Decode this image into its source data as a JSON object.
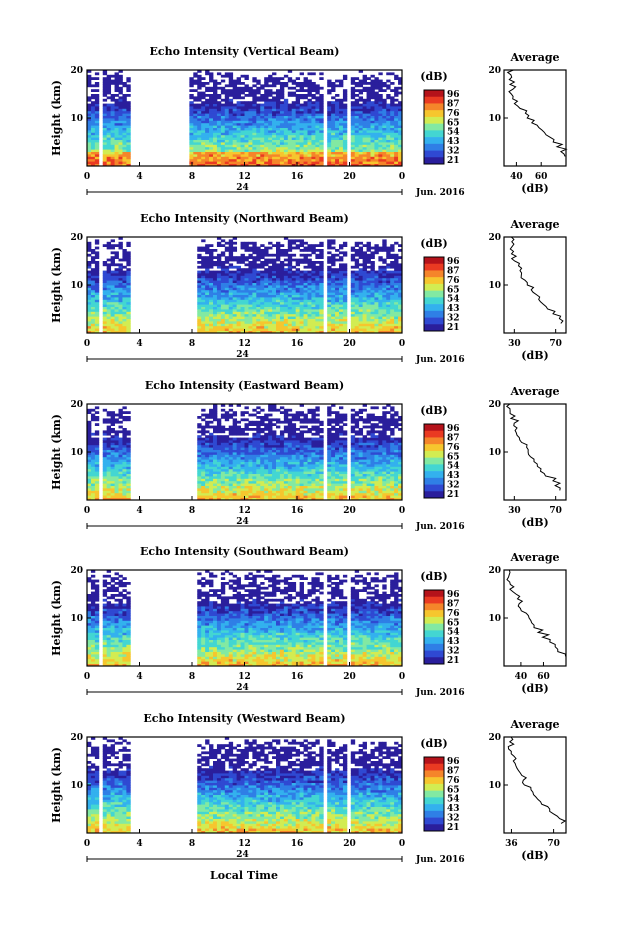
{
  "figure": {
    "ylabel": "Height (km)",
    "xlabel": "Local Time",
    "date_label": "Jun. 2016",
    "day_label": "24",
    "cbar_unit": "(dB)",
    "avg_title": "Average",
    "avg_xlabel": "(dB)",
    "colors": [
      "#2a1e9c",
      "#2f49d2",
      "#2f7fe6",
      "#33b1ee",
      "#43d6d2",
      "#82e9a2",
      "#d2ec52",
      "#f6c62e",
      "#f5852a",
      "#ea3a22",
      "#b5121a"
    ]
  },
  "chart_data": [
    {
      "type": "heatmap",
      "title": "Echo Intensity (Vertical Beam)",
      "x_ticks": [
        "0",
        "4",
        "8",
        "12",
        "16",
        "20",
        "0"
      ],
      "y_ticks": [
        "20",
        "10"
      ],
      "ylim": [
        0,
        20
      ],
      "xlim": [
        0,
        24
      ],
      "cbar_ticks": [
        "96",
        "87",
        "76",
        "65",
        "54",
        "43",
        "32",
        "21"
      ],
      "clim": [
        21,
        96
      ],
      "gaps": [
        [
          3.2,
          7.9
        ]
      ],
      "avg": {
        "xlim": [
          30,
          80
        ],
        "x_ticks": [
          "40",
          "60"
        ],
        "x_tick_values": [
          40,
          60
        ],
        "profile": [
          [
            2,
            80
          ],
          [
            3,
            77
          ],
          [
            4,
            74
          ],
          [
            5,
            70
          ],
          [
            6,
            66
          ],
          [
            7,
            62
          ],
          [
            8,
            57
          ],
          [
            9,
            53
          ],
          [
            10,
            49
          ],
          [
            11,
            46
          ],
          [
            12,
            44
          ],
          [
            13,
            40
          ],
          [
            14,
            38
          ],
          [
            15,
            37
          ],
          [
            16,
            38
          ],
          [
            17,
            36
          ],
          [
            18,
            35
          ],
          [
            19,
            34
          ],
          [
            20,
            36
          ]
        ]
      }
    },
    {
      "type": "heatmap",
      "title": "Echo Intensity (Northward Beam)",
      "x_ticks": [
        "0",
        "4",
        "8",
        "12",
        "16",
        "20",
        "0"
      ],
      "y_ticks": [
        "20",
        "10"
      ],
      "ylim": [
        0,
        20
      ],
      "xlim": [
        0,
        24
      ],
      "cbar_ticks": [
        "96",
        "87",
        "76",
        "65",
        "54",
        "43",
        "32",
        "21"
      ],
      "clim": [
        21,
        96
      ],
      "gaps": [
        [
          3.2,
          8.3
        ]
      ],
      "avg": {
        "xlim": [
          20,
          80
        ],
        "x_ticks": [
          "30",
          "70"
        ],
        "x_tick_values": [
          30,
          70
        ],
        "profile": [
          [
            2,
            74
          ],
          [
            3,
            72
          ],
          [
            4,
            68
          ],
          [
            5,
            63
          ],
          [
            6,
            58
          ],
          [
            7,
            54
          ],
          [
            8,
            50
          ],
          [
            9,
            46
          ],
          [
            10,
            42
          ],
          [
            11,
            40
          ],
          [
            12,
            38
          ],
          [
            13,
            35
          ],
          [
            14,
            33
          ],
          [
            15,
            31
          ],
          [
            16,
            30
          ],
          [
            17,
            28
          ],
          [
            18,
            27
          ],
          [
            19,
            26
          ],
          [
            20,
            26
          ]
        ]
      }
    },
    {
      "type": "heatmap",
      "title": "Echo Intensity (Eastward Beam)",
      "x_ticks": [
        "0",
        "4",
        "8",
        "12",
        "16",
        "20",
        "0"
      ],
      "y_ticks": [
        "20",
        "10"
      ],
      "ylim": [
        0,
        20
      ],
      "xlim": [
        0,
        24
      ],
      "cbar_ticks": [
        "96",
        "87",
        "76",
        "65",
        "54",
        "43",
        "32",
        "21"
      ],
      "clim": [
        21,
        96
      ],
      "gaps": [
        [
          3.2,
          8.4
        ]
      ],
      "avg": {
        "xlim": [
          20,
          80
        ],
        "x_ticks": [
          "30",
          "70"
        ],
        "x_tick_values": [
          30,
          70
        ],
        "profile": [
          [
            2,
            74
          ],
          [
            3,
            71
          ],
          [
            4,
            67
          ],
          [
            5,
            62
          ],
          [
            6,
            57
          ],
          [
            7,
            53
          ],
          [
            8,
            49
          ],
          [
            9,
            45
          ],
          [
            10,
            42
          ],
          [
            11,
            40
          ],
          [
            12,
            37
          ],
          [
            13,
            35
          ],
          [
            14,
            33
          ],
          [
            15,
            31
          ],
          [
            16,
            30
          ],
          [
            17,
            28
          ],
          [
            18,
            27
          ],
          [
            19,
            26
          ],
          [
            20,
            26
          ]
        ]
      }
    },
    {
      "type": "heatmap",
      "title": "Echo Intensity (Southward Beam)",
      "x_ticks": [
        "0",
        "4",
        "8",
        "12",
        "16",
        "20",
        "0"
      ],
      "y_ticks": [
        "20",
        "10"
      ],
      "ylim": [
        0,
        20
      ],
      "xlim": [
        0,
        24
      ],
      "cbar_ticks": [
        "96",
        "87",
        "76",
        "65",
        "54",
        "43",
        "32",
        "21"
      ],
      "clim": [
        21,
        96
      ],
      "gaps": [
        [
          3.2,
          8.4
        ]
      ],
      "avg": {
        "xlim": [
          25,
          80
        ],
        "x_ticks": [
          "40",
          "60"
        ],
        "x_tick_values": [
          40,
          60
        ],
        "profile": [
          [
            2,
            78
          ],
          [
            3,
            74
          ],
          [
            4,
            70
          ],
          [
            5,
            65
          ],
          [
            6,
            61
          ],
          [
            7,
            57
          ],
          [
            8,
            53
          ],
          [
            9,
            49
          ],
          [
            10,
            46
          ],
          [
            11,
            43
          ],
          [
            12,
            40
          ],
          [
            13,
            38
          ],
          [
            14,
            36
          ],
          [
            15,
            34
          ],
          [
            16,
            32
          ],
          [
            17,
            30
          ],
          [
            18,
            29
          ],
          [
            19,
            28
          ],
          [
            20,
            28
          ]
        ]
      }
    },
    {
      "type": "heatmap",
      "title": "Echo Intensity (Westward Beam)",
      "x_ticks": [
        "0",
        "4",
        "8",
        "12",
        "16",
        "20",
        "0"
      ],
      "y_ticks": [
        "20",
        "10"
      ],
      "ylim": [
        0,
        20
      ],
      "xlim": [
        0,
        24
      ],
      "cbar_ticks": [
        "96",
        "87",
        "76",
        "65",
        "54",
        "43",
        "32",
        "21"
      ],
      "clim": [
        21,
        96
      ],
      "gaps": [
        [
          3.2,
          8.3
        ]
      ],
      "avg": {
        "xlim": [
          30,
          80
        ],
        "x_ticks": [
          "36",
          "70"
        ],
        "x_tick_values": [
          36,
          70
        ],
        "profile": [
          [
            2,
            77
          ],
          [
            3,
            74
          ],
          [
            4,
            70
          ],
          [
            5,
            66
          ],
          [
            6,
            62
          ],
          [
            7,
            58
          ],
          [
            8,
            54
          ],
          [
            9,
            51
          ],
          [
            10,
            48
          ],
          [
            11,
            45
          ],
          [
            12,
            43
          ],
          [
            13,
            41
          ],
          [
            14,
            39
          ],
          [
            15,
            38
          ],
          [
            16,
            37
          ],
          [
            17,
            36
          ],
          [
            18,
            35
          ],
          [
            19,
            35
          ],
          [
            20,
            35
          ]
        ]
      }
    }
  ]
}
